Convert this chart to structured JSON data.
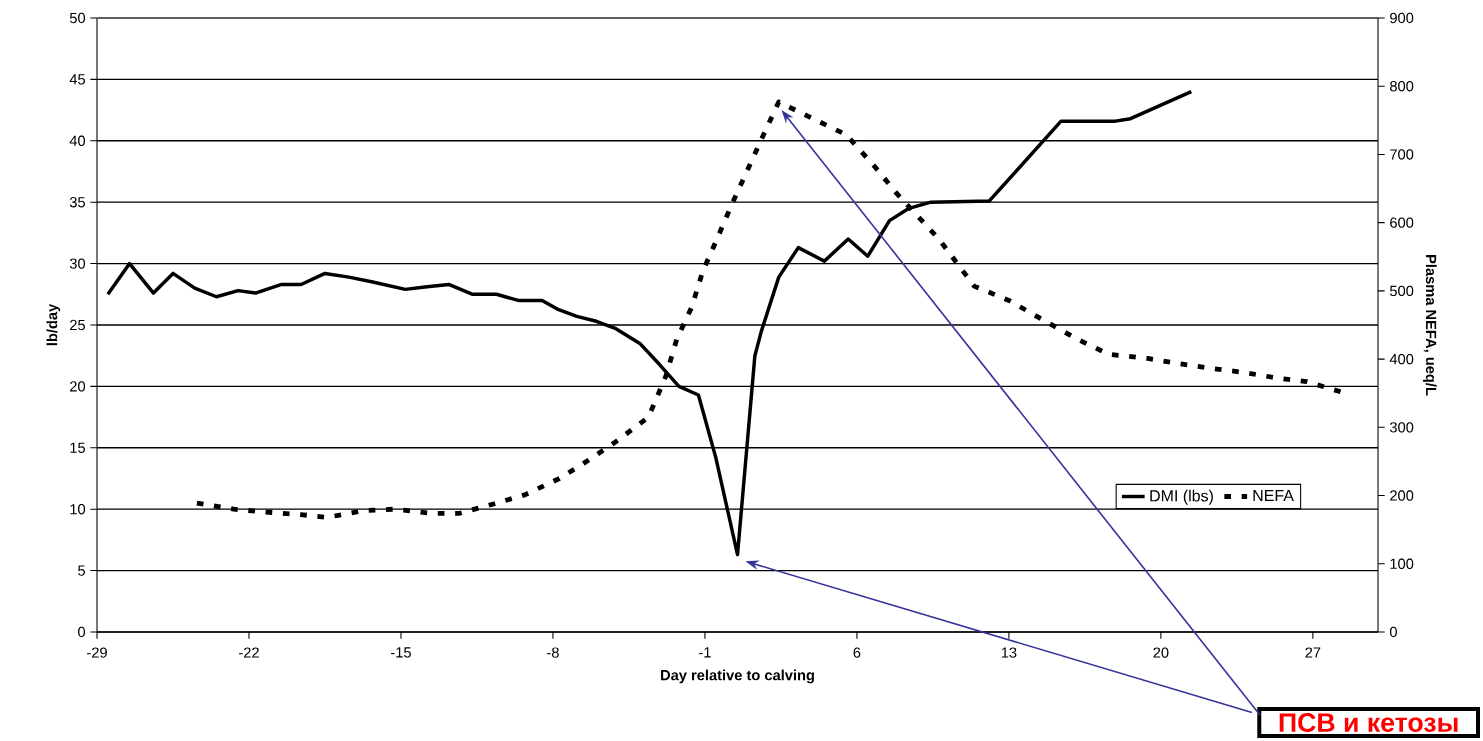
{
  "chart_data": {
    "type": "line",
    "xlabel": "Day relative to calving",
    "ylabel": "lb/day",
    "y2label": "Plasma NEFA, ueq/L",
    "xlim": [
      -29,
      30
    ],
    "xticks": [
      -29,
      -22,
      -15,
      -8,
      -1,
      6,
      13,
      20,
      27
    ],
    "ylim": [
      0,
      50
    ],
    "yticks": [
      0,
      5,
      10,
      15,
      20,
      25,
      30,
      35,
      40,
      45,
      50
    ],
    "y2lim": [
      0,
      900
    ],
    "y2ticks": [
      0,
      100,
      200,
      300,
      400,
      500,
      600,
      700,
      800,
      900
    ],
    "grid": "y",
    "legend": "bottom right",
    "marker": "none",
    "series": [
      {
        "name": "DMI (lbs)",
        "color": "#000000",
        "line_style": "solid",
        "x": [
          -28.5,
          -27.5,
          -26.4,
          -25.5,
          -24.5,
          -23.5,
          -22.5,
          -21.7,
          -20.5,
          -19.6,
          -18.5,
          -17.4,
          -16.3,
          -14.8,
          -13.9,
          -12.8,
          -11.7,
          -10.6,
          -9.6,
          -8.5,
          -7.8,
          -6.9,
          -6.0,
          -5.1,
          -4.0,
          -3.1,
          -2.2,
          -1.3,
          -0.5,
          0.5,
          1.3,
          1.6,
          2.4,
          3.3,
          4.5,
          5.6,
          6.5,
          7.5,
          8.4,
          9.4,
          12.1,
          15.4,
          17.9,
          18.6,
          21.4
        ],
        "values": [
          27.5,
          30,
          27.6,
          29.2,
          28,
          27.3,
          27.8,
          27.6,
          28.3,
          28.3,
          29.2,
          28.9,
          28.5,
          27.9,
          28.1,
          28.3,
          27.5,
          27.5,
          27,
          27,
          26.3,
          25.7,
          25.3,
          24.7,
          23.5,
          21.8,
          20,
          19.3,
          14.2,
          6.3,
          22.5,
          24.5,
          28.9,
          31.3,
          30.2,
          32,
          30.6,
          33.5,
          34.5,
          35,
          35.1,
          41.6,
          41.6,
          41.8,
          44
        ]
      },
      {
        "name": "NEFA",
        "color": "#000000",
        "line_style": "dashed",
        "axis": "y2",
        "x": [
          -24.4,
          -22.7,
          -21.3,
          -19.6,
          -18.4,
          -16.7,
          -15.3,
          -13.6,
          -12.3,
          -10.7,
          -9.3,
          -7.7,
          -6.5,
          -5.1,
          -3.6,
          -2.8,
          -2.3,
          -1.6,
          -1.1,
          -0.5,
          0.2,
          0.9,
          1.7,
          2.4,
          4.0,
          5.5,
          6.8,
          7.8,
          9.8,
          11.4,
          13.0,
          14.6,
          16.1,
          17.6,
          19.4,
          20.7,
          22.4,
          23.7,
          25.4,
          26.7,
          28.4
        ],
        "values": [
          189,
          180,
          176,
          172,
          168,
          178,
          180,
          174,
          174,
          188,
          201,
          225,
          249,
          279,
          315,
          375,
          429,
          477,
          529,
          572,
          624,
          673,
          729,
          777,
          752,
          729,
          683,
          644,
          575,
          507,
          486,
          457,
          430,
          407,
          401,
          394,
          386,
          381,
          372,
          367,
          351
        ]
      }
    ],
    "annotations": [
      "ПСВ и кетозы"
    ]
  }
}
